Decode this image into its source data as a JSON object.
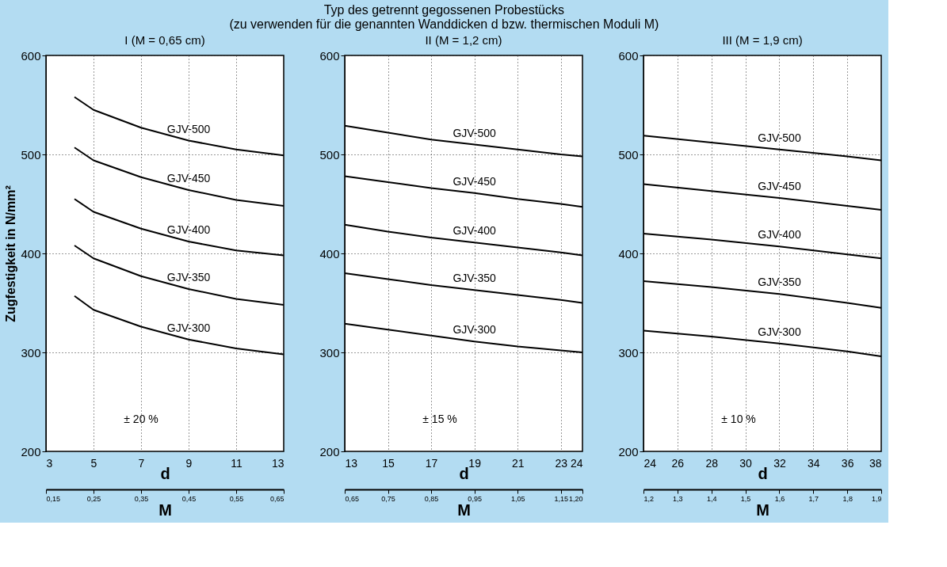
{
  "chart_data": [
    {
      "type": "line",
      "title": "Typ des getrennt gegossenen Probestücks\n(zu verwenden für die genannten Wanddicken d bzw. thermischen Moduli M)",
      "subtitle": "I (M = 0,65 cm)",
      "xlabel": "d",
      "ylabel": "Zugfestigkeit in N/mm²",
      "x2label": "M",
      "x": [
        4.2,
        5,
        7,
        9,
        11,
        13
      ],
      "xlim": [
        3,
        13
      ],
      "xticks": [
        3,
        5,
        7,
        9,
        11,
        13
      ],
      "ylim": [
        200,
        600
      ],
      "yticks": [
        200,
        300,
        400,
        500,
        600
      ],
      "x2lim": [
        0.15,
        0.65
      ],
      "x2ticks": [
        {
          "value": 0.15,
          "label": "0,15"
        },
        {
          "value": 0.25,
          "label": "0,25"
        },
        {
          "value": 0.35,
          "label": "0,35"
        },
        {
          "value": 0.45,
          "label": "0,45"
        },
        {
          "value": 0.55,
          "label": "0,55"
        },
        {
          "value": 0.65,
          "label": "0,65"
        }
      ],
      "grid": true,
      "legend": false,
      "marker": "none",
      "line_style": "solid",
      "annotations": [
        "± 20 %"
      ],
      "series": [
        {
          "name": "GJV-500",
          "color": "#000000",
          "values": [
            558,
            545,
            527,
            514,
            505,
            499
          ]
        },
        {
          "name": "GJV-450",
          "color": "#000000",
          "values": [
            507,
            494,
            477,
            464,
            454,
            448
          ]
        },
        {
          "name": "GJV-400",
          "color": "#000000",
          "values": [
            455,
            442,
            425,
            412,
            403,
            398
          ]
        },
        {
          "name": "GJV-350",
          "color": "#000000",
          "values": [
            408,
            395,
            377,
            364,
            354,
            348
          ]
        },
        {
          "name": "GJV-300",
          "color": "#000000",
          "values": [
            357,
            343,
            326,
            313,
            304,
            298
          ]
        }
      ]
    },
    {
      "type": "line",
      "subtitle": "II (M = 1,2 cm)",
      "xlabel": "d",
      "x2label": "M",
      "x": [
        13,
        15,
        17,
        19,
        21,
        23,
        24
      ],
      "xlim": [
        13,
        24
      ],
      "xticks": [
        13,
        15,
        17,
        19,
        21,
        23,
        24
      ],
      "ylim": [
        200,
        600
      ],
      "yticks": [
        200,
        300,
        400,
        500,
        600
      ],
      "x2lim": [
        0.65,
        1.2
      ],
      "x2ticks": [
        {
          "value": 0.65,
          "label": "0,65"
        },
        {
          "value": 0.75,
          "label": "0,75"
        },
        {
          "value": 0.85,
          "label": "0,85"
        },
        {
          "value": 0.95,
          "label": "0,95"
        },
        {
          "value": 1.05,
          "label": "1,05"
        },
        {
          "value": 1.15,
          "label": "1,15"
        },
        {
          "value": 1.2,
          "label": "1,20"
        }
      ],
      "grid": true,
      "legend": false,
      "marker": "none",
      "line_style": "solid",
      "annotations": [
        "± 15 %"
      ],
      "series": [
        {
          "name": "GJV-500",
          "color": "#000000",
          "values": [
            529,
            522,
            515,
            510,
            505,
            500,
            498
          ]
        },
        {
          "name": "GJV-450",
          "color": "#000000",
          "values": [
            478,
            472,
            466,
            461,
            455,
            450,
            447
          ]
        },
        {
          "name": "GJV-400",
          "color": "#000000",
          "values": [
            429,
            422,
            416,
            411,
            406,
            401,
            398
          ]
        },
        {
          "name": "GJV-350",
          "color": "#000000",
          "values": [
            380,
            374,
            368,
            363,
            358,
            353,
            350
          ]
        },
        {
          "name": "GJV-300",
          "color": "#000000",
          "values": [
            329,
            323,
            317,
            311,
            306,
            302,
            300
          ]
        }
      ]
    },
    {
      "type": "line",
      "subtitle": "III (M = 1,9 cm)",
      "xlabel": "d",
      "x2label": "M",
      "x": [
        24,
        28,
        32,
        36,
        38
      ],
      "xlim": [
        24,
        38
      ],
      "xticks": [
        24,
        26,
        28,
        30,
        32,
        34,
        36,
        38
      ],
      "ylim": [
        200,
        600
      ],
      "yticks": [
        200,
        300,
        400,
        500,
        600
      ],
      "x2lim": [
        1.2,
        1.9
      ],
      "x2ticks": [
        {
          "value": 1.2,
          "label": "1,2"
        },
        {
          "value": 1.3,
          "label": "1,3"
        },
        {
          "value": 1.4,
          "label": "1,4"
        },
        {
          "value": 1.5,
          "label": "1,5"
        },
        {
          "value": 1.6,
          "label": "1,6"
        },
        {
          "value": 1.7,
          "label": "1,7"
        },
        {
          "value": 1.8,
          "label": "1,8"
        },
        {
          "value": 1.9,
          "label": "1,9"
        }
      ],
      "grid": true,
      "legend": false,
      "marker": "none",
      "line_style": "solid",
      "annotations": [
        "± 10 %"
      ],
      "series": [
        {
          "name": "GJV-500",
          "color": "#000000",
          "values": [
            519,
            512,
            505,
            498,
            494
          ]
        },
        {
          "name": "GJV-450",
          "color": "#000000",
          "values": [
            470,
            463,
            456,
            448,
            444
          ]
        },
        {
          "name": "GJV-400",
          "color": "#000000",
          "values": [
            420,
            414,
            407,
            399,
            395
          ]
        },
        {
          "name": "GJV-350",
          "color": "#000000",
          "values": [
            372,
            366,
            359,
            350,
            345
          ]
        },
        {
          "name": "GJV-300",
          "color": "#000000",
          "values": [
            322,
            316,
            309,
            301,
            296
          ]
        }
      ]
    }
  ]
}
